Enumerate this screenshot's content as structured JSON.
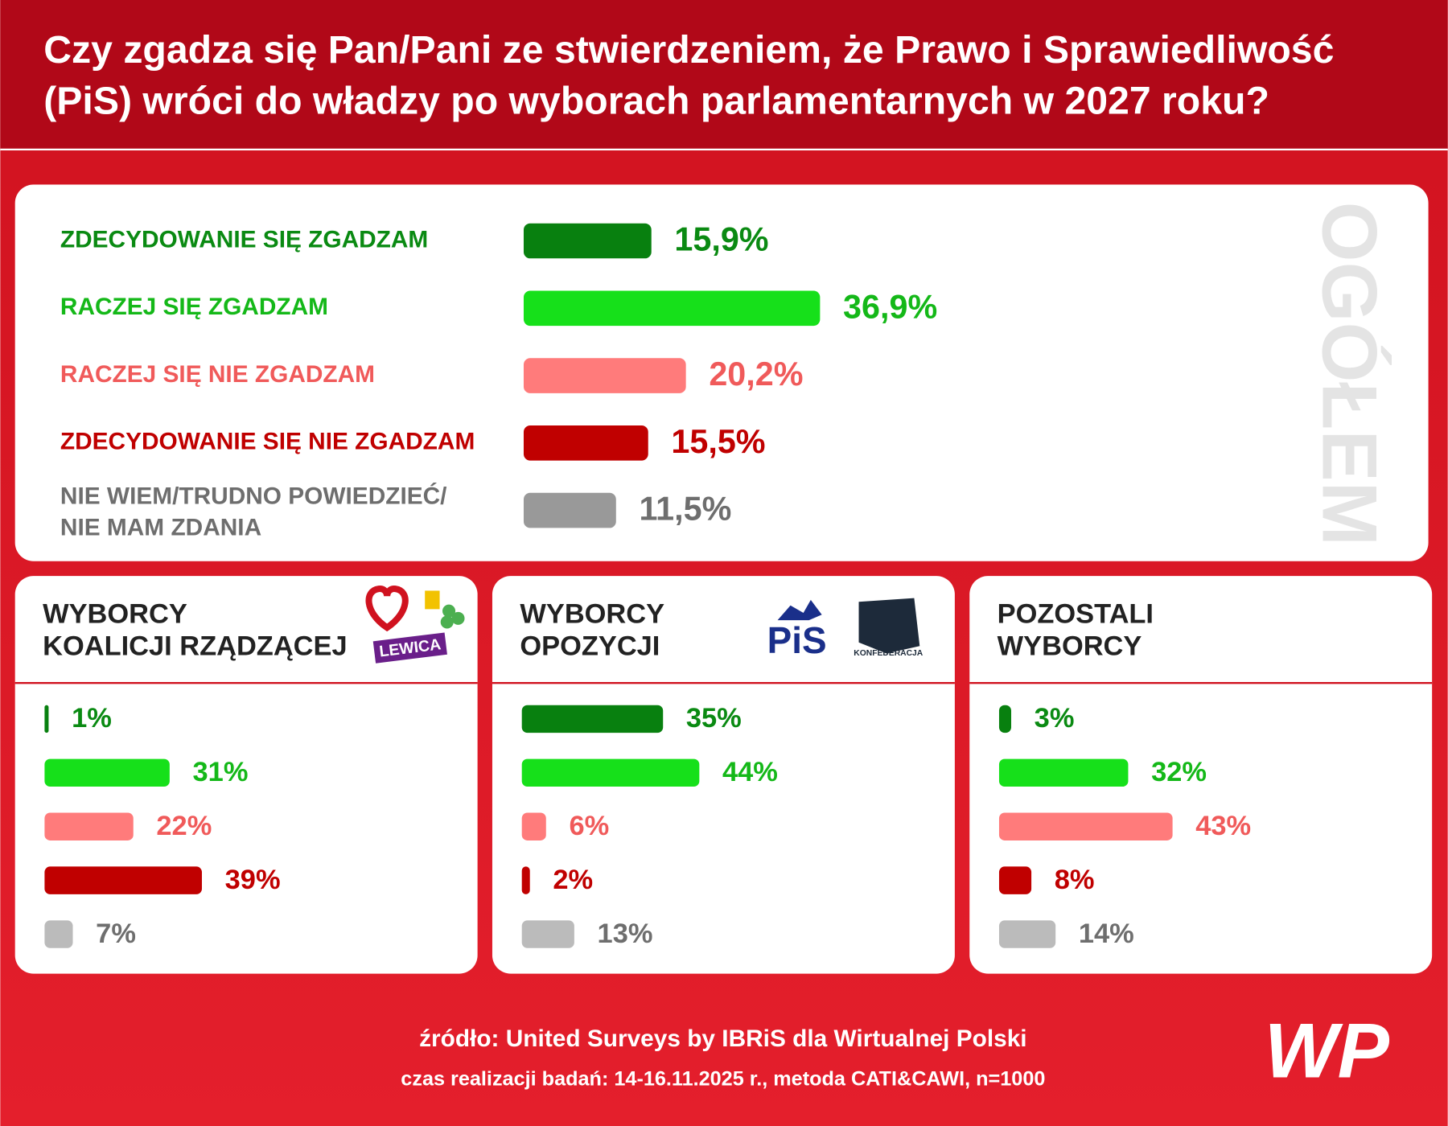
{
  "header": {
    "title": [
      "Czy zgadza się Pan/Pani ze stwierdzeniem, że Prawo i Sprawiedliwość",
      "(PiS) wróci do władzy po wyborach parlamentarnych w 2027 roku?"
    ]
  },
  "chart_data": [
    {
      "type": "bar",
      "title": "OGÓŁEM",
      "categories": [
        "ZDECYDOWANIE SIĘ ZGADZAM",
        "RACZEJ SIĘ ZGADZAM",
        "RACZEJ SIĘ NIE ZGADZAM",
        "ZDECYDOWANIE SIĘ NIE ZGADZAM",
        [
          "NIE WIEM/TRUDNO POWIEDZIEĆ/",
          "NIE MAM ZDANIA"
        ]
      ],
      "values": [
        15.9,
        36.9,
        20.2,
        15.5,
        11.5
      ],
      "value_labels": [
        "15,9%",
        "36,9%",
        "20,2%",
        "15,5%",
        "11,5%"
      ],
      "colors": [
        "#08800f",
        "#16e01a",
        "#ff7b7b",
        "#c00000",
        "#999999"
      ],
      "text_colors": [
        "#0a8a12",
        "#14b818",
        "#f05a5a",
        "#c00000",
        "#6e6e6e"
      ]
    },
    {
      "type": "bar",
      "title": [
        "WYBORCY",
        "KOALICJI RZĄDZĄCEJ"
      ],
      "logos": [
        "LEWICA"
      ],
      "values": [
        1,
        31,
        22,
        39,
        7
      ],
      "value_labels": [
        "1%",
        "31%",
        "22%",
        "39%",
        "7%"
      ],
      "colors": [
        "#08800f",
        "#16e01a",
        "#ff7b7b",
        "#c00000",
        "#bbbbbb"
      ],
      "text_colors": [
        "#0a8a12",
        "#14b818",
        "#f05a5a",
        "#c00000",
        "#6e6e6e"
      ]
    },
    {
      "type": "bar",
      "title": [
        "WYBORCY",
        "OPOZYCJI"
      ],
      "logos": [
        "PiS",
        "KONFEDERACJA"
      ],
      "values": [
        35,
        44,
        6,
        2,
        13
      ],
      "value_labels": [
        "35%",
        "44%",
        "6%",
        "2%",
        "13%"
      ],
      "colors": [
        "#08800f",
        "#16e01a",
        "#ff7b7b",
        "#c00000",
        "#bbbbbb"
      ],
      "text_colors": [
        "#0a8a12",
        "#14b818",
        "#f05a5a",
        "#c00000",
        "#6e6e6e"
      ]
    },
    {
      "type": "bar",
      "title": [
        "POZOSTALI",
        "WYBORCY"
      ],
      "values": [
        3,
        32,
        43,
        8,
        14
      ],
      "value_labels": [
        "3%",
        "32%",
        "43%",
        "8%",
        "14%"
      ],
      "colors": [
        "#08800f",
        "#16e01a",
        "#ff7b7b",
        "#c00000",
        "#bbbbbb"
      ],
      "text_colors": [
        "#0a8a12",
        "#14b818",
        "#f05a5a",
        "#c00000",
        "#6e6e6e"
      ]
    }
  ],
  "footer": {
    "source": "źródło: United Surveys by IBRiS dla Wirtualnej Polski",
    "details": "czas realizacji badań: 14-16.11.2025 r., metoda CATI&CAWI, n=1000",
    "logo": "WP"
  }
}
